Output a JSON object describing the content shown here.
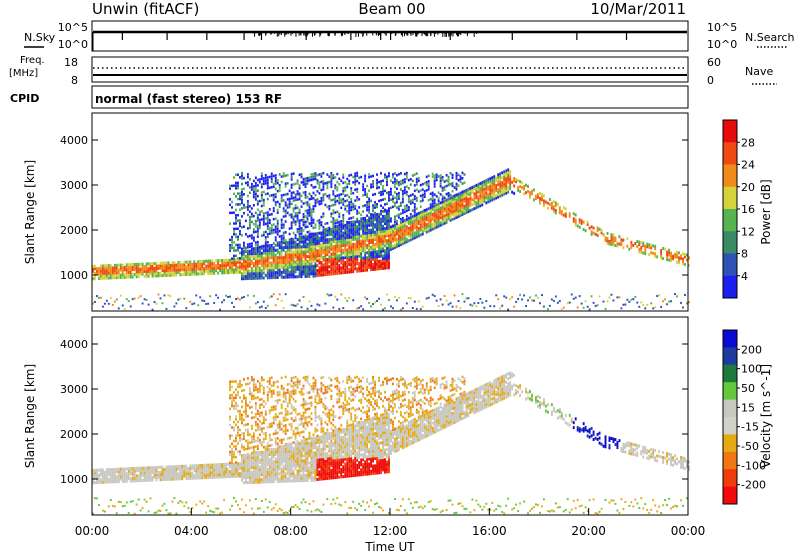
{
  "header": {
    "station": "Unwin (fitACF)",
    "beam": "Beam 00",
    "date": "10/Mar/2011"
  },
  "nsky_panel": {
    "left_label": "N.Sky",
    "right_label": "N.Search",
    "left_ticks": [
      "10^5",
      "10^0"
    ],
    "right_ticks": [
      "10^5",
      "10^0"
    ]
  },
  "freq_panel": {
    "left_label_1": "Freq.",
    "left_label_2": "[MHz]",
    "right_label": "Nave",
    "left_ticks": [
      "18",
      "8"
    ],
    "right_ticks": [
      "60",
      "0"
    ]
  },
  "cpid_panel": {
    "label": "CPID",
    "text": "normal (fast stereo) 153 RF"
  },
  "colors": {
    "power": [
      "#1e1ef0",
      "#2f52b8",
      "#3a8a66",
      "#55b450",
      "#d6d23a",
      "#f08a1a",
      "#f04a12",
      "#e60a0a"
    ],
    "velocity": [
      "#0a0ad2",
      "#1e3ca0",
      "#1e7a3c",
      "#64c83c",
      "#c8c8c0",
      "#d2d2c8",
      "#e6aa14",
      "#f07814",
      "#f03c0a",
      "#f00a0a"
    ]
  },
  "chart_data": [
    {
      "type": "heatmap",
      "name": "power",
      "ylabel": "Slant Range [km]",
      "ylim": [
        200,
        4600
      ],
      "yticks": [
        1000,
        2000,
        3000,
        4000
      ],
      "colorbar": {
        "label": "Power [dB]",
        "ticks": [
          "4",
          "8",
          "12",
          "16",
          "20",
          "24",
          "28"
        ]
      }
    },
    {
      "type": "heatmap",
      "name": "velocity",
      "ylabel": "Slant Range [km]",
      "ylim": [
        200,
        4600
      ],
      "yticks": [
        1000,
        2000,
        3000,
        4000
      ],
      "colorbar": {
        "label": "Velocity [m s^-1]",
        "ticks": [
          "200",
          "100",
          "50",
          "15",
          "-15",
          "-50",
          "-100",
          "-200"
        ]
      }
    }
  ],
  "x_axis": {
    "label": "Time UT",
    "ticks": [
      "00:00",
      "04:00",
      "08:00",
      "12:00",
      "16:00",
      "20:00",
      "00:00"
    ]
  }
}
